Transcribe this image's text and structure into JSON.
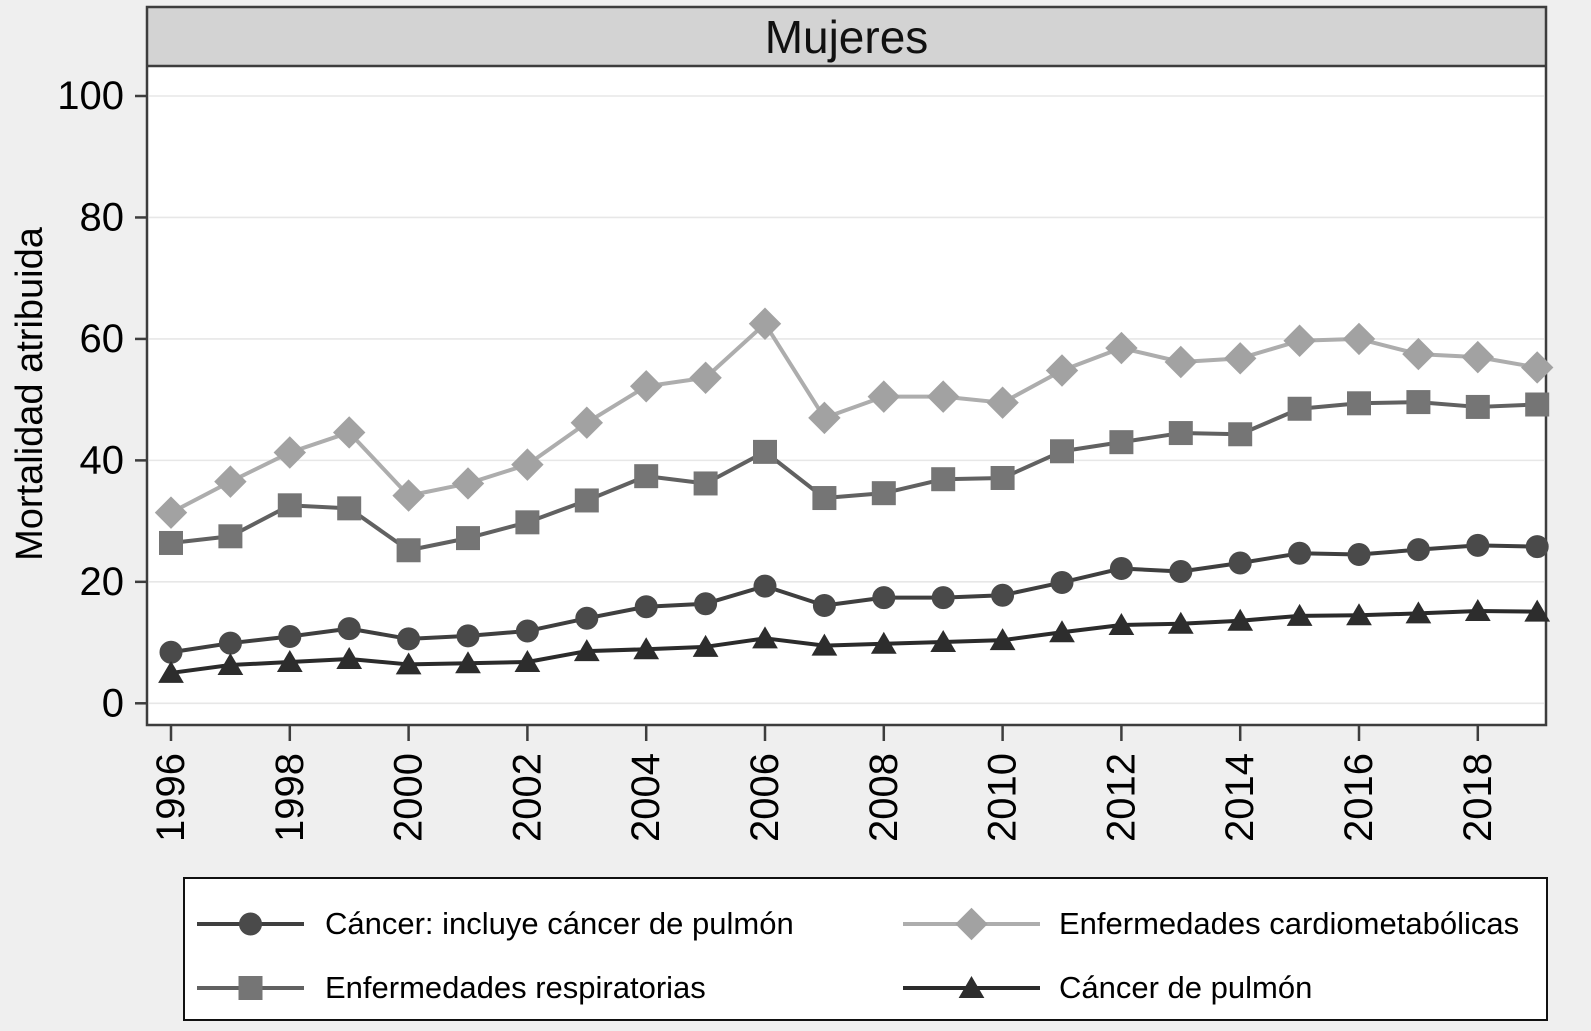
{
  "figure": {
    "title": "Mujeres",
    "y_axis_title": "Mortalidad atribuida"
  },
  "chart_data": {
    "type": "line",
    "title": "Mujeres",
    "xlabel": "",
    "ylabel": "Mortalidad atribuida",
    "ylim": [
      0,
      100
    ],
    "yticks": [
      0,
      20,
      40,
      60,
      80,
      100
    ],
    "xticks": [
      1996,
      1998,
      2000,
      2002,
      2004,
      2006,
      2008,
      2010,
      2012,
      2014,
      2016,
      2018
    ],
    "x": [
      1996,
      1997,
      1998,
      1999,
      2000,
      2001,
      2002,
      2003,
      2004,
      2005,
      2006,
      2007,
      2008,
      2009,
      2010,
      2011,
      2012,
      2013,
      2014,
      2015,
      2016,
      2017,
      2018,
      2019
    ],
    "grid": "horizontal",
    "legend_position": "bottom",
    "legend_order": [
      0,
      2,
      1,
      3
    ],
    "background_color": "#efefef",
    "plot_background": "#ffffff",
    "title_band_color": "#d3d3d3",
    "frame_color": "#3d3d3d",
    "gridline_color": "#e7e7e7",
    "series": [
      {
        "id": "cancer",
        "name": "Cáncer: incluye cáncer de pulmón",
        "marker": "circle",
        "color": "#4a4a4a",
        "line_color": "#3f3f3f",
        "values": [
          8.4,
          9.9,
          11.0,
          12.3,
          10.6,
          11.1,
          11.9,
          14.0,
          15.9,
          16.4,
          19.3,
          16.1,
          17.4,
          17.4,
          17.8,
          19.9,
          22.2,
          21.7,
          23.1,
          24.7,
          24.5,
          25.3,
          26.0,
          25.8
        ]
      },
      {
        "id": "respiratorias",
        "name": "Enfermedades respiratorias",
        "marker": "square",
        "color": "#757575",
        "line_color": "#616161",
        "values": [
          26.4,
          27.5,
          32.6,
          32.1,
          25.2,
          27.2,
          29.8,
          33.4,
          37.4,
          36.2,
          41.4,
          33.8,
          34.6,
          36.9,
          37.1,
          41.5,
          43.0,
          44.5,
          44.3,
          48.5,
          49.4,
          49.6,
          48.8,
          49.2
        ]
      },
      {
        "id": "cardiometabolicas",
        "name": "Enfermedades cardiometabólicas",
        "marker": "diamond",
        "color": "#a2a2a2",
        "line_color": "#adadad",
        "values": [
          31.4,
          36.5,
          41.3,
          44.6,
          34.2,
          36.2,
          39.3,
          46.2,
          52.2,
          53.6,
          62.5,
          47.0,
          50.5,
          50.5,
          49.5,
          54.8,
          58.5,
          56.2,
          56.8,
          59.7,
          60.0,
          57.5,
          57.0,
          55.3
        ]
      },
      {
        "id": "pulmon",
        "name": "Cáncer de pulmón",
        "marker": "triangle",
        "color": "#2d2d2d",
        "line_color": "#2b2b2b",
        "values": [
          5.0,
          6.3,
          6.8,
          7.3,
          6.4,
          6.6,
          6.8,
          8.6,
          8.9,
          9.3,
          10.7,
          9.5,
          9.8,
          10.1,
          10.4,
          11.7,
          12.9,
          13.1,
          13.6,
          14.4,
          14.5,
          14.8,
          15.2,
          15.1
        ]
      }
    ]
  }
}
